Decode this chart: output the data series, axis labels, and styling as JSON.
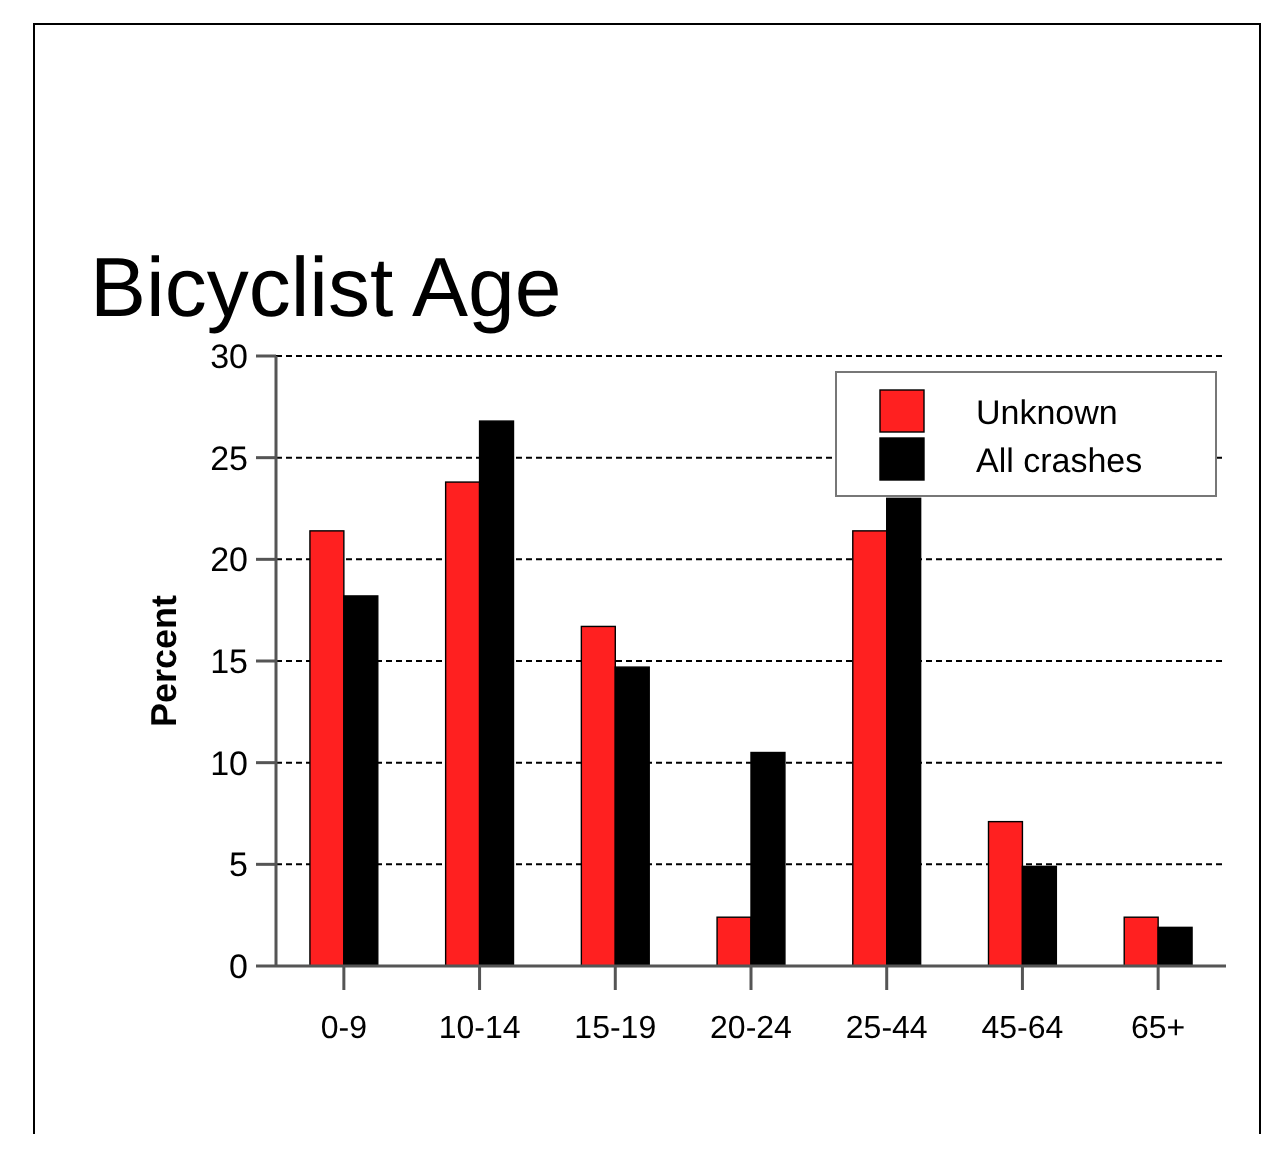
{
  "chart_data": {
    "type": "bar",
    "title": "Bicyclist Age",
    "ylabel": "Percent",
    "categories": [
      "0-9",
      "10-14",
      "15-19",
      "20-24",
      "25-44",
      "45-64",
      "65+"
    ],
    "series": [
      {
        "name": "Unknown",
        "color": "#ff2020",
        "values": [
          21.4,
          23.8,
          16.7,
          2.4,
          21.4,
          7.1,
          2.4
        ]
      },
      {
        "name": "All crashes",
        "color": "#000000",
        "values": [
          18.2,
          26.8,
          14.7,
          10.5,
          23.0,
          4.9,
          1.9
        ]
      }
    ],
    "ylim": [
      0,
      30
    ],
    "yticks": [
      0,
      5,
      10,
      15,
      20,
      25,
      30
    ],
    "grid": "y",
    "legend": "top right"
  }
}
